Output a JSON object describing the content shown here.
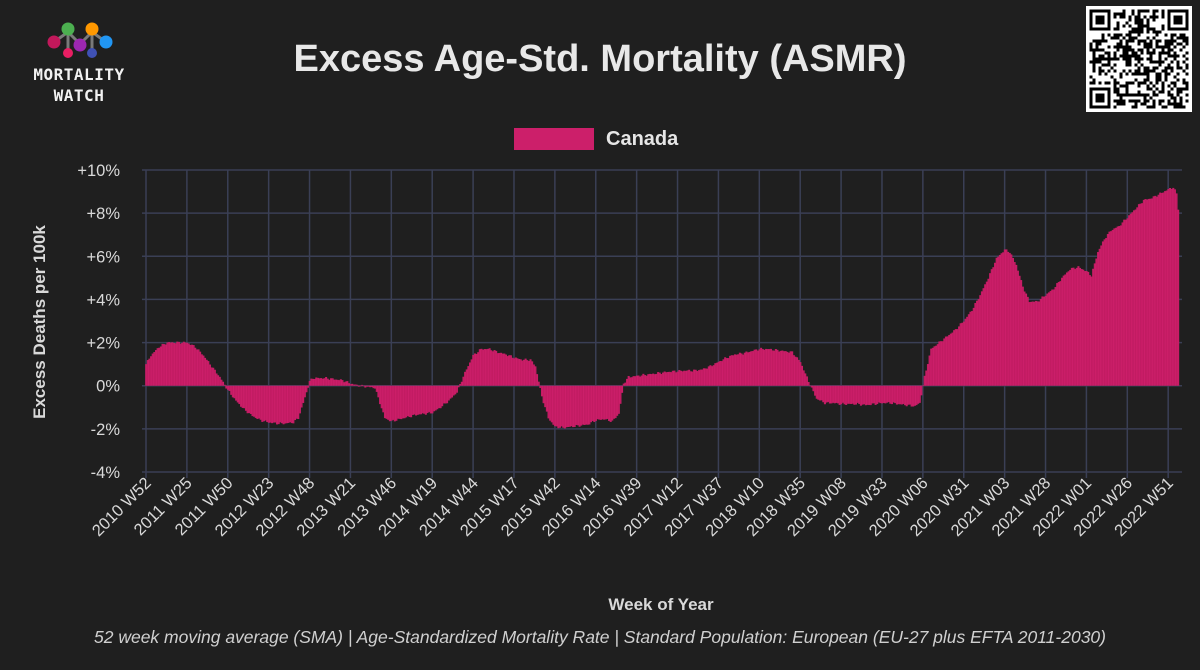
{
  "branding": {
    "logo_line1": "MORTALITY",
    "logo_line2": "WATCH",
    "logo_icon": "molecule-network-icon",
    "qr_icon": "qr-code-icon"
  },
  "colors": {
    "background": "#1f1f1f",
    "series": "#cc1f6a",
    "grid": "#3a3f55",
    "text": "#e6e6e6"
  },
  "chart_data": {
    "type": "bar",
    "title": "Excess Age-Std. Mortality (ASMR)",
    "subtitle": "52 week moving average (SMA) | Age-Standardized Mortality Rate | Standard Population: European (EU-27 plus EFTA 2011-2030)",
    "xlabel": "Week of Year",
    "ylabel": "Excess Deaths per 100k",
    "ylim": [
      -4,
      10
    ],
    "yticks": [
      "+10%",
      "+8%",
      "+6%",
      "+4%",
      "+2%",
      "0%",
      "-2%",
      "-4%"
    ],
    "ytick_values": [
      10,
      8,
      6,
      4,
      2,
      0,
      -2,
      -4
    ],
    "legend_position": "top-center",
    "x_tick_labels": [
      "2010 W52",
      "2011 W25",
      "2011 W50",
      "2012 W23",
      "2012 W48",
      "2013 W21",
      "2013 W46",
      "2014 W19",
      "2014 W44",
      "2015 W17",
      "2015 W42",
      "2016 W14",
      "2016 W39",
      "2017 W12",
      "2017 W37",
      "2018 W10",
      "2018 W35",
      "2019 W08",
      "2019 W33",
      "2020 W06",
      "2020 W31",
      "2021 W03",
      "2021 W28",
      "2022 W01",
      "2022 W26",
      "2022 W51"
    ],
    "weeks_per_tick": 25,
    "series": [
      {
        "name": "Canada",
        "unit": "% excess, weekly values 2010 W52 to 2022 W51 (interpolated from chart)",
        "anchors": [
          [
            0,
            1.0
          ],
          [
            3,
            1.4
          ],
          [
            8,
            1.8
          ],
          [
            13,
            2.0
          ],
          [
            20,
            2.0
          ],
          [
            25,
            2.0
          ],
          [
            30,
            1.8
          ],
          [
            35,
            1.4
          ],
          [
            40,
            0.9
          ],
          [
            45,
            0.4
          ],
          [
            50,
            -0.2
          ],
          [
            55,
            -0.7
          ],
          [
            60,
            -1.1
          ],
          [
            65,
            -1.4
          ],
          [
            70,
            -1.6
          ],
          [
            75,
            -1.7
          ],
          [
            80,
            -1.75
          ],
          [
            85,
            -1.75
          ],
          [
            90,
            -1.7
          ],
          [
            93,
            -1.5
          ],
          [
            96,
            -0.8
          ],
          [
            100,
            0.2
          ],
          [
            102,
            0.35
          ],
          [
            110,
            0.35
          ],
          [
            115,
            0.3
          ],
          [
            120,
            0.25
          ],
          [
            125,
            0.1
          ],
          [
            130,
            0.0
          ],
          [
            135,
            -0.05
          ],
          [
            140,
            -0.1
          ],
          [
            143,
            -0.8
          ],
          [
            146,
            -1.5
          ],
          [
            150,
            -1.65
          ],
          [
            155,
            -1.55
          ],
          [
            160,
            -1.45
          ],
          [
            165,
            -1.35
          ],
          [
            170,
            -1.3
          ],
          [
            175,
            -1.25
          ],
          [
            180,
            -1.0
          ],
          [
            185,
            -0.7
          ],
          [
            190,
            -0.3
          ],
          [
            195,
            0.6
          ],
          [
            200,
            1.4
          ],
          [
            205,
            1.7
          ],
          [
            210,
            1.7
          ],
          [
            215,
            1.55
          ],
          [
            220,
            1.45
          ],
          [
            225,
            1.3
          ],
          [
            230,
            1.2
          ],
          [
            235,
            1.2
          ],
          [
            238,
            0.9
          ],
          [
            242,
            -0.5
          ],
          [
            246,
            -1.5
          ],
          [
            250,
            -1.9
          ],
          [
            255,
            -1.95
          ],
          [
            260,
            -1.9
          ],
          [
            265,
            -1.85
          ],
          [
            270,
            -1.8
          ],
          [
            275,
            -1.6
          ],
          [
            280,
            -1.55
          ],
          [
            285,
            -1.65
          ],
          [
            289,
            -1.3
          ],
          [
            292,
            0.1
          ],
          [
            295,
            0.4
          ],
          [
            300,
            0.45
          ],
          [
            310,
            0.55
          ],
          [
            320,
            0.65
          ],
          [
            330,
            0.7
          ],
          [
            335,
            0.7
          ],
          [
            340,
            0.75
          ],
          [
            345,
            0.9
          ],
          [
            350,
            1.1
          ],
          [
            355,
            1.3
          ],
          [
            360,
            1.45
          ],
          [
            365,
            1.5
          ],
          [
            370,
            1.6
          ],
          [
            375,
            1.7
          ],
          [
            380,
            1.7
          ],
          [
            385,
            1.65
          ],
          [
            390,
            1.6
          ],
          [
            395,
            1.55
          ],
          [
            400,
            1.1
          ],
          [
            405,
            0.2
          ],
          [
            410,
            -0.6
          ],
          [
            415,
            -0.8
          ],
          [
            420,
            -0.8
          ],
          [
            425,
            -0.85
          ],
          [
            430,
            -0.85
          ],
          [
            435,
            -0.85
          ],
          [
            440,
            -0.9
          ],
          [
            445,
            -0.85
          ],
          [
            450,
            -0.8
          ],
          [
            455,
            -0.8
          ],
          [
            460,
            -0.85
          ],
          [
            465,
            -0.9
          ],
          [
            470,
            -0.95
          ],
          [
            473,
            -0.8
          ],
          [
            476,
            0.4
          ],
          [
            480,
            1.7
          ],
          [
            485,
            2.0
          ],
          [
            490,
            2.3
          ],
          [
            495,
            2.6
          ],
          [
            500,
            3.0
          ],
          [
            505,
            3.5
          ],
          [
            510,
            4.2
          ],
          [
            515,
            5.0
          ],
          [
            520,
            5.9
          ],
          [
            525,
            6.3
          ],
          [
            528,
            6.2
          ],
          [
            532,
            5.6
          ],
          [
            536,
            4.6
          ],
          [
            540,
            3.9
          ],
          [
            545,
            3.9
          ],
          [
            550,
            4.2
          ],
          [
            555,
            4.5
          ],
          [
            560,
            5.0
          ],
          [
            565,
            5.4
          ],
          [
            570,
            5.5
          ],
          [
            575,
            5.3
          ],
          [
            578,
            5.1
          ],
          [
            582,
            6.2
          ],
          [
            586,
            6.8
          ],
          [
            590,
            7.2
          ],
          [
            595,
            7.4
          ],
          [
            600,
            7.8
          ],
          [
            605,
            8.2
          ],
          [
            610,
            8.6
          ],
          [
            615,
            8.7
          ],
          [
            620,
            8.9
          ],
          [
            625,
            9.1
          ],
          [
            628,
            9.2
          ],
          [
            630,
            8.9
          ],
          [
            631,
            8.2
          ]
        ]
      }
    ]
  }
}
